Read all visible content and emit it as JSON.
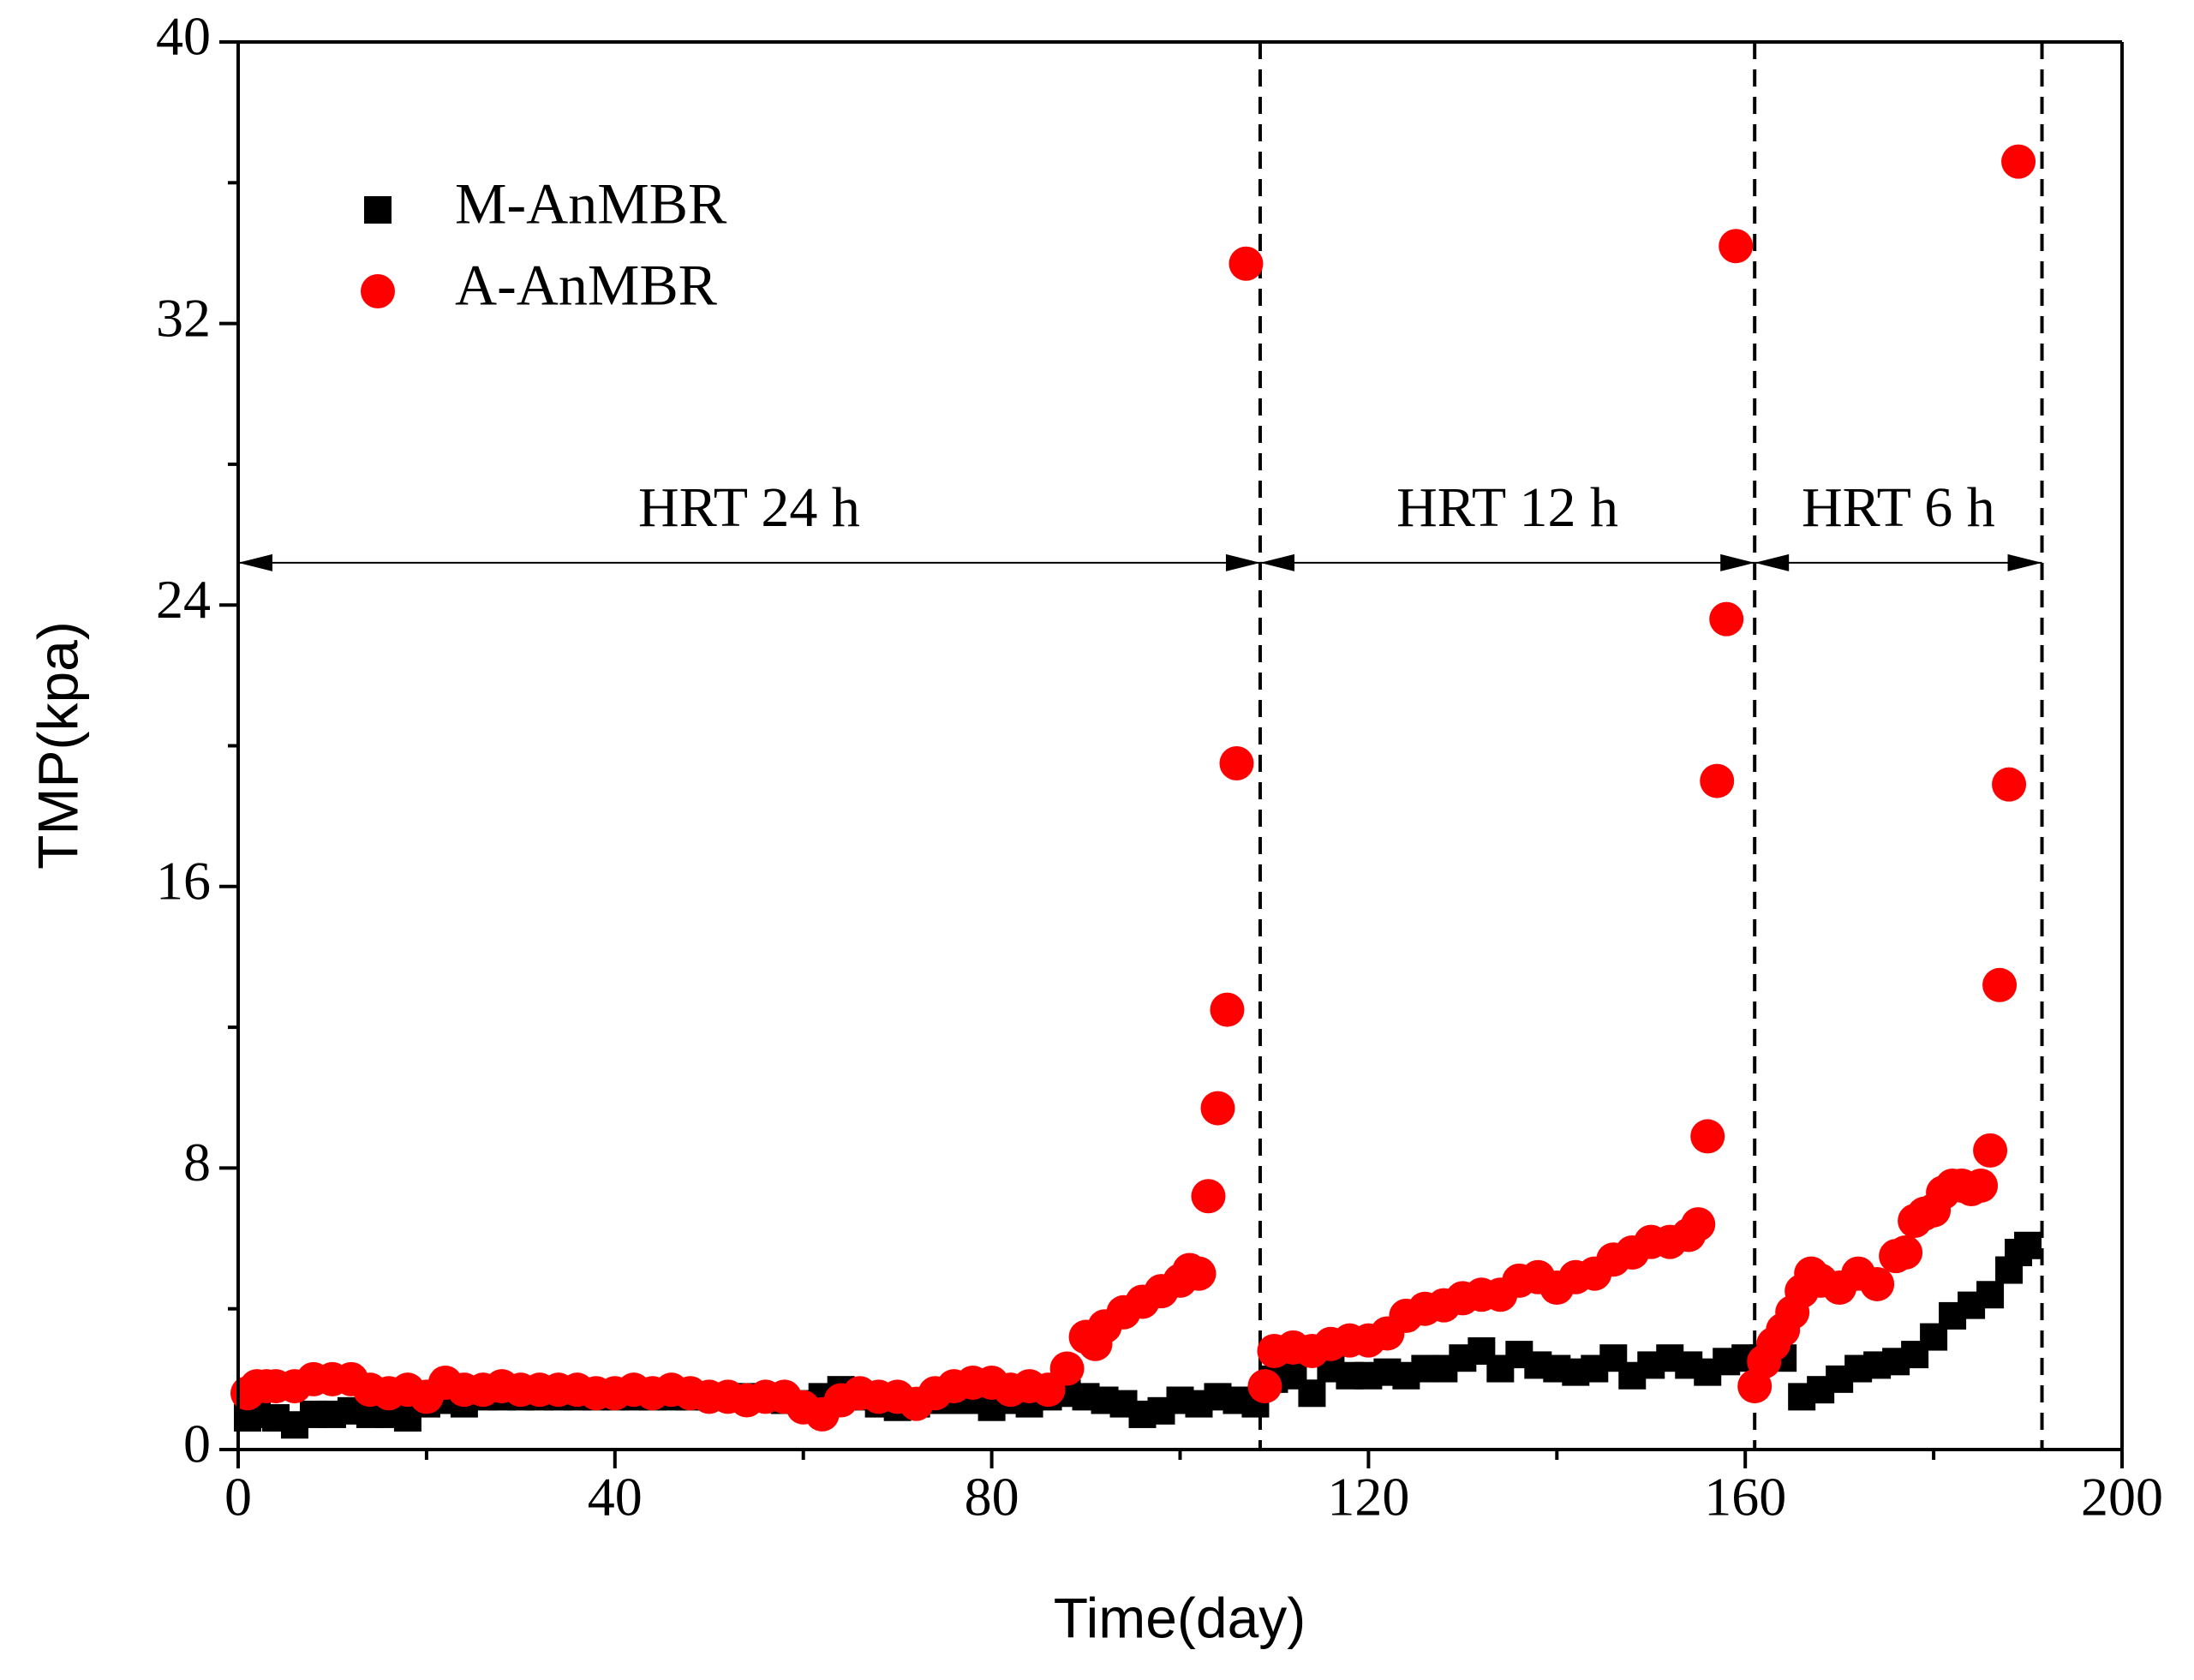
{
  "chart_data": {
    "type": "scatter",
    "xlabel": "Time(day)",
    "ylabel": "TMP(kpa)",
    "xlim": [
      0,
      200
    ],
    "ylim": [
      0,
      40
    ],
    "xticks": [
      0,
      40,
      80,
      120,
      160,
      200
    ],
    "yticks": [
      0,
      8,
      16,
      24,
      32,
      40
    ],
    "xminorticks": [
      20,
      60,
      100,
      140,
      180
    ],
    "yminorticks": [
      4,
      12,
      20,
      28,
      36
    ],
    "legend": "upper left",
    "vlines": [
      108.5,
      161,
      191.5
    ],
    "annotations": [
      {
        "label": "HRT 24 h",
        "x1": 0,
        "x2": 108.5,
        "y": 25.2
      },
      {
        "label": "HRT 12 h",
        "x1": 108.5,
        "x2": 161,
        "y": 25.2
      },
      {
        "label": "HRT 6 h",
        "x1": 161,
        "x2": 191.5,
        "y": 25.2
      }
    ],
    "series": [
      {
        "name": "M-AnMBR",
        "color": "#000000",
        "marker": "square",
        "x": [
          1,
          2,
          4,
          6,
          8,
          10,
          12,
          14,
          16,
          18,
          20,
          22,
          24,
          26,
          28,
          30,
          32,
          34,
          36,
          38,
          40,
          42,
          44,
          46,
          48,
          50,
          52,
          54,
          56,
          58,
          60,
          62,
          64,
          66,
          68,
          70,
          72,
          74,
          76,
          78,
          80,
          82,
          84,
          86,
          88,
          90,
          92,
          94,
          96,
          98,
          100,
          102,
          104,
          106,
          108,
          110,
          112,
          114,
          116,
          118,
          120,
          122,
          124,
          126,
          128,
          130,
          132,
          134,
          136,
          138,
          140,
          142,
          144,
          146,
          148,
          150,
          152,
          154,
          156,
          158,
          160,
          162,
          164,
          166,
          168,
          170,
          172,
          174,
          176,
          178,
          180,
          182,
          184,
          186,
          188,
          189,
          190
        ],
        "values": [
          0.9,
          1.0,
          0.9,
          0.7,
          1.0,
          1.0,
          1.1,
          1.0,
          1.0,
          0.9,
          1.3,
          1.4,
          1.3,
          1.5,
          1.5,
          1.5,
          1.5,
          1.5,
          1.5,
          1.5,
          1.5,
          1.5,
          1.5,
          1.5,
          1.5,
          1.5,
          1.5,
          1.5,
          1.5,
          1.4,
          1.3,
          1.5,
          1.7,
          1.5,
          1.3,
          1.2,
          1.3,
          1.4,
          1.4,
          1.4,
          1.2,
          1.4,
          1.3,
          1.5,
          1.6,
          1.5,
          1.4,
          1.3,
          1.0,
          1.1,
          1.4,
          1.3,
          1.5,
          1.4,
          1.3,
          2.0,
          2.1,
          1.6,
          2.3,
          2.1,
          2.1,
          2.2,
          2.1,
          2.3,
          2.3,
          2.6,
          2.8,
          2.3,
          2.7,
          2.4,
          2.3,
          2.2,
          2.3,
          2.6,
          2.1,
          2.4,
          2.6,
          2.4,
          2.2,
          2.5,
          2.6,
          2.6,
          2.6,
          1.5,
          1.7,
          2.0,
          2.3,
          2.4,
          2.5,
          2.7,
          3.2,
          3.8,
          4.1,
          4.4,
          5.1,
          5.6,
          5.8
        ]
      },
      {
        "name": "A-AnMBR",
        "color": "#ff0000",
        "marker": "circle",
        "x": [
          1,
          2,
          3,
          4,
          6,
          8,
          10,
          12,
          14,
          16,
          18,
          20,
          22,
          24,
          26,
          28,
          30,
          32,
          34,
          36,
          38,
          40,
          42,
          44,
          46,
          48,
          50,
          52,
          54,
          56,
          58,
          60,
          62,
          64,
          66,
          68,
          70,
          72,
          74,
          76,
          78,
          80,
          82,
          84,
          86,
          88,
          90,
          91,
          92,
          94,
          96,
          98,
          100,
          101,
          102,
          103,
          104,
          105,
          106,
          107,
          109,
          110,
          112,
          114,
          116,
          118,
          120,
          122,
          124,
          126,
          128,
          130,
          132,
          134,
          136,
          138,
          140,
          142,
          144,
          146,
          148,
          150,
          152,
          154,
          155,
          156,
          157,
          158,
          159,
          161,
          162,
          163,
          164,
          165,
          166,
          167,
          168,
          170,
          172,
          174,
          176,
          177,
          178,
          179,
          180,
          181,
          182,
          183,
          184,
          185,
          186,
          187,
          188,
          189
        ],
        "values": [
          1.6,
          1.8,
          1.8,
          1.8,
          1.8,
          2.0,
          2.0,
          2.0,
          1.7,
          1.6,
          1.7,
          1.5,
          1.9,
          1.7,
          1.7,
          1.8,
          1.7,
          1.7,
          1.7,
          1.7,
          1.6,
          1.6,
          1.7,
          1.6,
          1.7,
          1.6,
          1.5,
          1.5,
          1.4,
          1.5,
          1.5,
          1.2,
          1.0,
          1.4,
          1.6,
          1.5,
          1.5,
          1.3,
          1.6,
          1.8,
          1.9,
          1.9,
          1.7,
          1.8,
          1.7,
          2.3,
          3.2,
          3.0,
          3.5,
          3.9,
          4.2,
          4.5,
          4.8,
          5.1,
          5.0,
          7.2,
          9.7,
          12.5,
          19.5,
          33.7,
          1.8,
          2.8,
          2.9,
          2.8,
          3.0,
          3.1,
          3.1,
          3.3,
          3.8,
          4.0,
          4.1,
          4.3,
          4.4,
          4.4,
          4.8,
          4.9,
          4.6,
          4.9,
          5.0,
          5.4,
          5.6,
          5.9,
          5.9,
          6.1,
          6.4,
          8.9,
          19.0,
          23.6,
          34.2,
          1.8,
          2.5,
          3.0,
          3.4,
          3.9,
          4.5,
          5.0,
          4.8,
          4.6,
          5.0,
          4.7,
          5.5,
          5.6,
          6.5,
          6.7,
          6.8,
          7.3,
          7.5,
          7.5,
          7.4,
          7.5,
          8.5,
          13.2,
          18.9,
          36.6
        ]
      }
    ]
  }
}
